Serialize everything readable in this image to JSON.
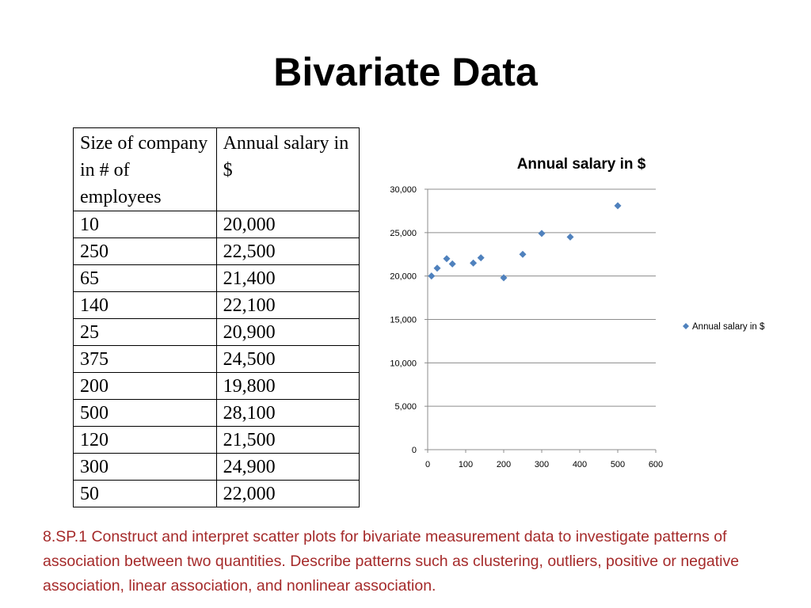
{
  "slide": {
    "title": "Bivariate Data",
    "footer": "8.SP.1 Construct and interpret scatter plots for bivariate measurement data to investigate patterns of association between two quantities. Describe patterns such as clustering, outliers, positive or negative association, linear association, and nonlinear association."
  },
  "table": {
    "headers": [
      "Size of company in # of employees",
      "Annual salary in $"
    ],
    "rows": [
      [
        "10",
        "20,000"
      ],
      [
        "250",
        "22,500"
      ],
      [
        "65",
        "21,400"
      ],
      [
        "140",
        "22,100"
      ],
      [
        "25",
        "20,900"
      ],
      [
        "375",
        "24,500"
      ],
      [
        "200",
        "19,800"
      ],
      [
        "500",
        "28,100"
      ],
      [
        "120",
        "21,500"
      ],
      [
        "300",
        "24,900"
      ],
      [
        "50",
        "22,000"
      ]
    ]
  },
  "chart_data": {
    "type": "scatter",
    "title": "Annual salary in $",
    "xlabel": "",
    "ylabel": "",
    "xlim": [
      0,
      600
    ],
    "ylim": [
      0,
      30000
    ],
    "x_ticks": [
      "0",
      "100",
      "200",
      "300",
      "400",
      "500",
      "600"
    ],
    "y_ticks": [
      "0",
      "5,000",
      "10,000",
      "15,000",
      "20,000",
      "25,000",
      "30,000"
    ],
    "grid": "horizontal",
    "legend_position": "right",
    "marker": "diamond",
    "color": "#4f81bd",
    "series": [
      {
        "name": "Annual salary in $",
        "x": [
          10,
          250,
          65,
          140,
          25,
          375,
          200,
          500,
          120,
          300,
          50
        ],
        "y": [
          20000,
          22500,
          21400,
          22100,
          20900,
          24500,
          19800,
          28100,
          21500,
          24900,
          22000
        ]
      }
    ]
  }
}
